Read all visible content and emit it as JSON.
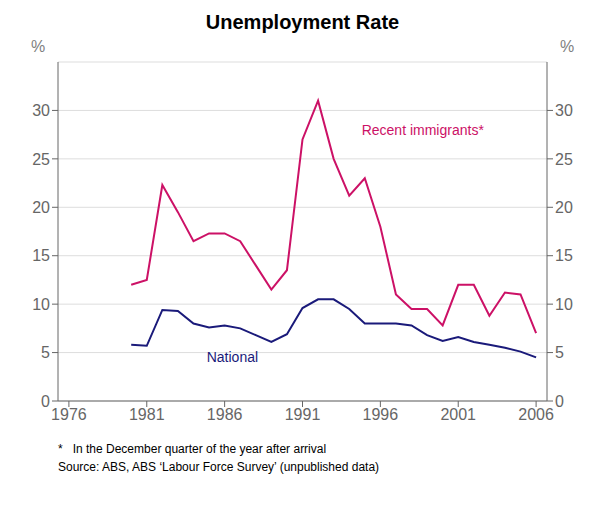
{
  "chart_data": {
    "type": "line",
    "title": "Unemployment Rate",
    "x": [
      1980,
      1981,
      1982,
      1983,
      1984,
      1985,
      1986,
      1987,
      1988,
      1989,
      1990,
      1991,
      1992,
      1993,
      1994,
      1995,
      1996,
      1997,
      1998,
      1999,
      2000,
      2001,
      2002,
      2003,
      2004,
      2005,
      2006
    ],
    "series": [
      {
        "name": "National",
        "color": "#1a1a7a",
        "values": [
          5.8,
          5.7,
          9.4,
          9.3,
          8.0,
          7.6,
          7.8,
          7.5,
          6.8,
          6.1,
          6.9,
          9.6,
          10.5,
          10.5,
          9.5,
          8.0,
          8.0,
          8.0,
          7.8,
          6.8,
          6.2,
          6.6,
          6.1,
          5.8,
          5.5,
          5.1,
          4.5
        ]
      },
      {
        "name": "Recent immigrants*",
        "color": "#cc1166",
        "values": [
          12.0,
          12.5,
          22.3,
          19.5,
          16.5,
          17.3,
          17.3,
          16.5,
          14.0,
          11.5,
          13.5,
          27.0,
          31.0,
          25.0,
          21.2,
          23.0,
          18.0,
          11.0,
          9.5,
          9.5,
          7.8,
          12.0,
          12.0,
          8.8,
          11.2,
          11.0,
          7.0
        ]
      }
    ],
    "xlim": [
      1975.3,
      2006.7
    ],
    "xticks": [
      1976,
      1981,
      1986,
      1991,
      1996,
      2001,
      2006
    ],
    "ylim": [
      0,
      35
    ],
    "yticks": [
      0,
      5,
      10,
      15,
      20,
      25,
      30
    ],
    "y2lim": [
      0,
      35
    ],
    "y2ticks": [
      0,
      5,
      10,
      15,
      20,
      25,
      30
    ],
    "ylabel": "%",
    "y2label": "%",
    "grid": true,
    "annotations": [
      {
        "text": "Recent immigrants*",
        "x": 1994.8,
        "y": 27.5,
        "color": "#cc1166",
        "align": "left"
      },
      {
        "text": "National",
        "x": 1986.5,
        "y": 4.0,
        "color": "#1a1a7a",
        "align": "center"
      }
    ],
    "footnotes": [
      "*   In the December quarter of the year after arrival",
      "Source: ABS, ABS ‘Labour Force Survey’ (unpublished data)"
    ]
  }
}
